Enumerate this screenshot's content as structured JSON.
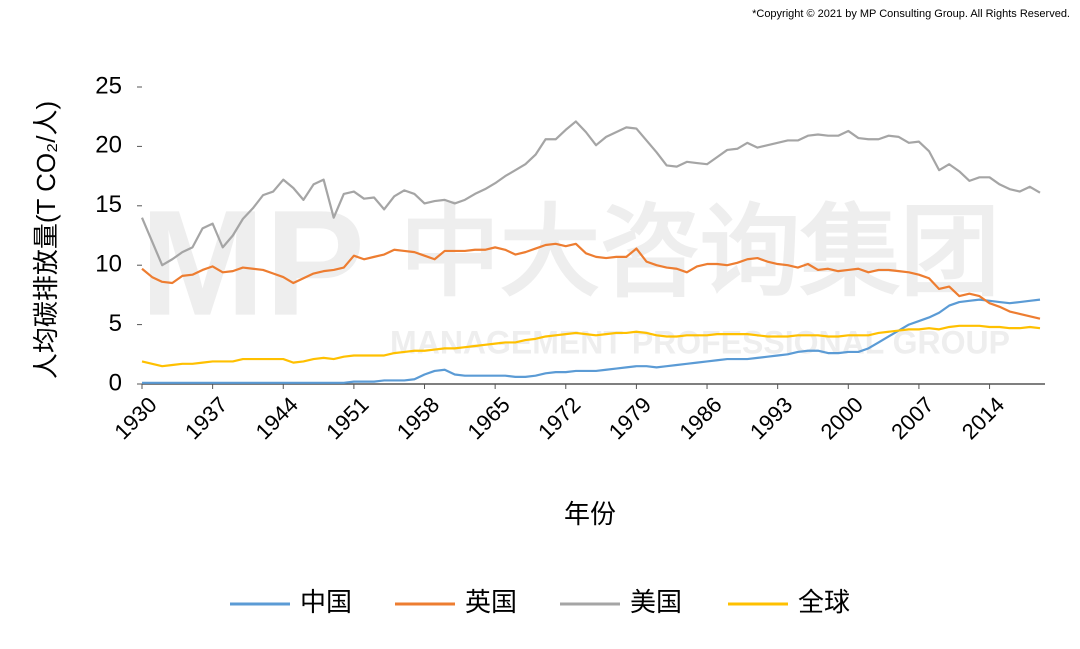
{
  "chart_data": {
    "type": "line",
    "copyright": "*Copyright © 2021 by MP Consulting Group. All Rights Reserved.",
    "watermark": [
      "MP",
      "中大咨询集团",
      "MANAGEMENT PROFESSIONAL GROUP"
    ],
    "xlabel": "年份",
    "ylabel": "人均碳排放量(T CO₂/人)",
    "x": [
      1930,
      1931,
      1932,
      1933,
      1934,
      1935,
      1936,
      1937,
      1938,
      1939,
      1940,
      1941,
      1942,
      1943,
      1944,
      1945,
      1946,
      1947,
      1948,
      1949,
      1950,
      1951,
      1952,
      1953,
      1954,
      1955,
      1956,
      1957,
      1958,
      1959,
      1960,
      1961,
      1962,
      1963,
      1964,
      1965,
      1966,
      1967,
      1968,
      1969,
      1970,
      1971,
      1972,
      1973,
      1974,
      1975,
      1976,
      1977,
      1978,
      1979,
      1980,
      1981,
      1982,
      1983,
      1984,
      1985,
      1986,
      1987,
      1988,
      1989,
      1990,
      1991,
      1992,
      1993,
      1994,
      1995,
      1996,
      1997,
      1998,
      1999,
      2000,
      2001,
      2002,
      2003,
      2004,
      2005,
      2006,
      2007,
      2008,
      2009,
      2010,
      2011,
      2012,
      2013,
      2014,
      2015,
      2016,
      2017,
      2018,
      2019
    ],
    "xlim": [
      1930,
      2019
    ],
    "xticks": [
      1930,
      1937,
      1944,
      1951,
      1958,
      1965,
      1972,
      1979,
      1986,
      1993,
      2000,
      2007,
      2014
    ],
    "ylim": [
      0,
      25
    ],
    "yticks": [
      0,
      5,
      10,
      15,
      20,
      25
    ],
    "series": [
      {
        "name": "中国",
        "color": "#5b9bd5",
        "values": [
          0.1,
          0.1,
          0.1,
          0.1,
          0.1,
          0.1,
          0.1,
          0.1,
          0.1,
          0.1,
          0.1,
          0.1,
          0.1,
          0.1,
          0.1,
          0.1,
          0.1,
          0.1,
          0.1,
          0.1,
          0.1,
          0.2,
          0.2,
          0.2,
          0.3,
          0.3,
          0.3,
          0.4,
          0.8,
          1.1,
          1.2,
          0.8,
          0.7,
          0.7,
          0.7,
          0.7,
          0.7,
          0.6,
          0.6,
          0.7,
          0.9,
          1.0,
          1.0,
          1.1,
          1.1,
          1.1,
          1.2,
          1.3,
          1.4,
          1.5,
          1.5,
          1.4,
          1.5,
          1.6,
          1.7,
          1.8,
          1.9,
          2.0,
          2.1,
          2.1,
          2.1,
          2.2,
          2.3,
          2.4,
          2.5,
          2.7,
          2.8,
          2.8,
          2.6,
          2.6,
          2.7,
          2.7,
          3.0,
          3.5,
          4.0,
          4.5,
          5.0,
          5.3,
          5.6,
          6.0,
          6.6,
          6.9,
          7.0,
          7.1,
          7.0,
          6.9,
          6.8,
          6.9,
          7.0,
          7.1
        ]
      },
      {
        "name": "英国",
        "color": "#ed7d31",
        "values": [
          9.7,
          9.0,
          8.6,
          8.5,
          9.1,
          9.2,
          9.6,
          9.9,
          9.4,
          9.5,
          9.8,
          9.7,
          9.6,
          9.3,
          9.0,
          8.5,
          8.9,
          9.3,
          9.5,
          9.6,
          9.8,
          10.8,
          10.5,
          10.7,
          10.9,
          11.3,
          11.2,
          11.1,
          10.8,
          10.5,
          11.2,
          11.2,
          11.2,
          11.3,
          11.3,
          11.5,
          11.3,
          10.9,
          11.1,
          11.4,
          11.7,
          11.8,
          11.6,
          11.8,
          11.0,
          10.7,
          10.6,
          10.7,
          10.7,
          11.4,
          10.3,
          10.0,
          9.8,
          9.7,
          9.4,
          9.9,
          10.1,
          10.1,
          10.0,
          10.2,
          10.5,
          10.6,
          10.3,
          10.1,
          10.0,
          9.8,
          10.1,
          9.6,
          9.7,
          9.5,
          9.6,
          9.7,
          9.4,
          9.6,
          9.6,
          9.5,
          9.4,
          9.2,
          8.9,
          8.0,
          8.2,
          7.4,
          7.6,
          7.4,
          6.8,
          6.5,
          6.1,
          5.9,
          5.7,
          5.5
        ]
      },
      {
        "name": "美国",
        "color": "#a5a5a5",
        "values": [
          14.0,
          12.0,
          10.0,
          10.5,
          11.1,
          11.5,
          13.1,
          13.5,
          11.5,
          12.5,
          13.9,
          14.8,
          15.9,
          16.2,
          17.2,
          16.5,
          15.5,
          16.8,
          17.2,
          14.0,
          16.0,
          16.2,
          15.6,
          15.7,
          14.7,
          15.8,
          16.3,
          16.0,
          15.2,
          15.4,
          15.5,
          15.2,
          15.5,
          16.0,
          16.4,
          16.9,
          17.5,
          18.0,
          18.5,
          19.3,
          20.6,
          20.6,
          21.4,
          22.1,
          21.2,
          20.1,
          20.8,
          21.2,
          21.6,
          21.5,
          20.5,
          19.5,
          18.4,
          18.3,
          18.7,
          18.6,
          18.5,
          19.1,
          19.7,
          19.8,
          20.3,
          19.9,
          20.1,
          20.3,
          20.5,
          20.5,
          20.9,
          21.0,
          20.9,
          20.9,
          21.3,
          20.7,
          20.6,
          20.6,
          20.9,
          20.8,
          20.3,
          20.4,
          19.6,
          18.0,
          18.5,
          17.9,
          17.1,
          17.4,
          17.4,
          16.8,
          16.4,
          16.2,
          16.6,
          16.1
        ]
      },
      {
        "name": "全球",
        "color": "#ffc000",
        "values": [
          1.9,
          1.7,
          1.5,
          1.6,
          1.7,
          1.7,
          1.8,
          1.9,
          1.9,
          1.9,
          2.1,
          2.1,
          2.1,
          2.1,
          2.1,
          1.8,
          1.9,
          2.1,
          2.2,
          2.1,
          2.3,
          2.4,
          2.4,
          2.4,
          2.4,
          2.6,
          2.7,
          2.8,
          2.8,
          2.9,
          3.0,
          3.0,
          3.1,
          3.2,
          3.3,
          3.4,
          3.5,
          3.5,
          3.7,
          3.8,
          4.0,
          4.1,
          4.2,
          4.3,
          4.2,
          4.1,
          4.2,
          4.3,
          4.3,
          4.4,
          4.3,
          4.1,
          4.0,
          4.0,
          4.1,
          4.1,
          4.1,
          4.2,
          4.2,
          4.2,
          4.2,
          4.1,
          4.0,
          4.0,
          4.0,
          4.1,
          4.1,
          4.1,
          4.0,
          4.0,
          4.1,
          4.1,
          4.1,
          4.3,
          4.4,
          4.5,
          4.6,
          4.6,
          4.7,
          4.6,
          4.8,
          4.9,
          4.9,
          4.9,
          4.8,
          4.8,
          4.7,
          4.7,
          4.8,
          4.7
        ]
      }
    ],
    "legend": "bottom"
  }
}
